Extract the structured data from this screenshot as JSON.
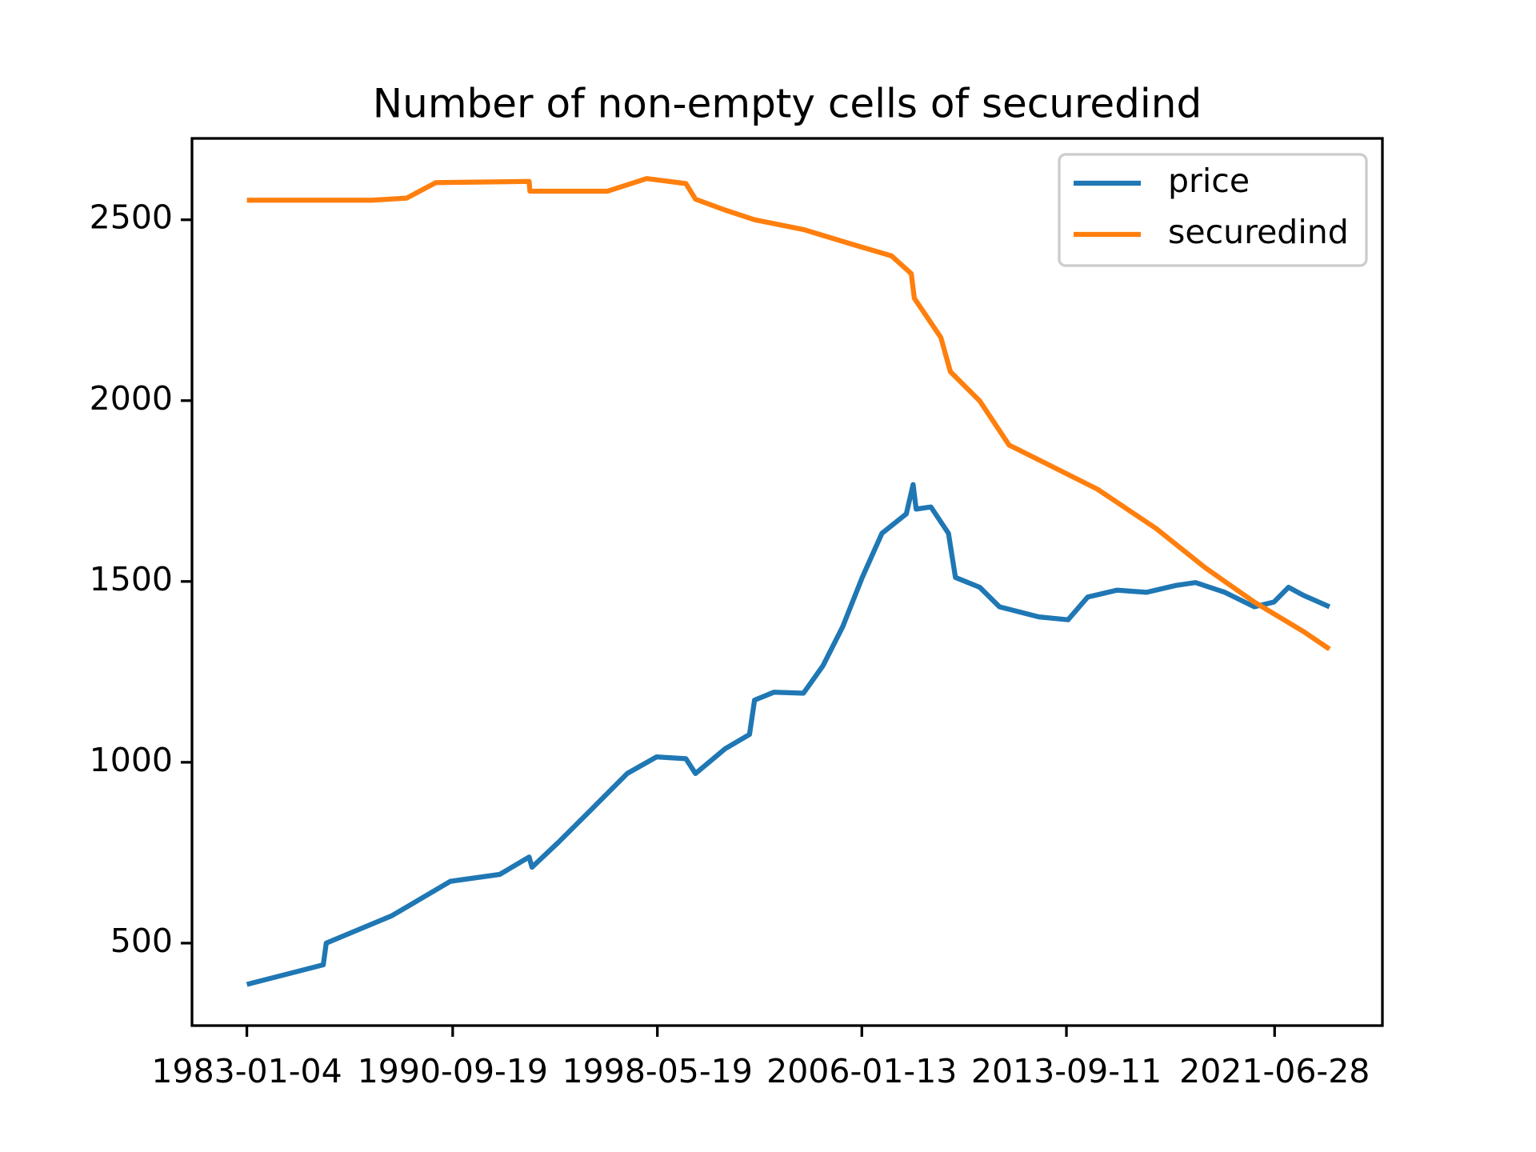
{
  "chart_data": {
    "type": "line",
    "title": "Number of non-empty cells of securedind",
    "xlim": [
      "1980-12-15",
      "2025-07-11"
    ],
    "xticks": [
      "1983-01-04",
      "1990-09-19",
      "1998-05-19",
      "2006-01-13",
      "2013-09-11",
      "2021-06-28"
    ],
    "ylim": [
      272,
      2725
    ],
    "yticks": [
      500,
      1000,
      1500,
      2000,
      2500
    ],
    "legend": "upper right",
    "series": [
      {
        "name": "price",
        "color": "#1f77b4",
        "x": [
          "1983-01-04",
          "1985-11-14",
          "1985-12-25",
          "1988-06-10",
          "1990-08-20",
          "1992-06-24",
          "1993-07-30",
          "1993-09-08",
          "1994-09-05",
          "1995-10-12",
          "1997-04-01",
          "1998-05-08",
          "1999-06-14",
          "1999-10-23",
          "2000-11-28",
          "2001-10-30",
          "2002-01-07",
          "2002-10-01",
          "2003-11-07",
          "2004-07-30",
          "2005-04-27",
          "2006-01-19",
          "2006-10-15",
          "2007-09-13",
          "2007-12-16",
          "2008-01-26",
          "2008-08-14",
          "2009-04-12",
          "2009-07-16",
          "2010-06-14",
          "2011-03-10",
          "2012-08-29",
          "2013-10-04",
          "2014-06-29",
          "2015-08-04",
          "2016-09-08",
          "2017-10-16",
          "2018-07-12",
          "2019-08-18",
          "2020-09-23",
          "2021-06-18",
          "2022-01-05",
          "2022-07-24",
          "2023-07-19"
        ],
        "values": [
          386,
          440,
          500,
          576,
          671,
          690,
          738,
          710,
          779,
          860,
          969,
          1015,
          1010,
          969,
          1037,
          1077,
          1172,
          1194,
          1191,
          1267,
          1375,
          1511,
          1633,
          1687,
          1768,
          1700,
          1706,
          1633,
          1511,
          1484,
          1430,
          1402,
          1394,
          1457,
          1476,
          1470,
          1489,
          1497,
          1470,
          1430,
          1443,
          1484,
          1462,
          1430
        ]
      },
      {
        "name": "securedind",
        "color": "#ff7f0e",
        "x": [
          "1983-01-04",
          "1987-09-16",
          "1988-12-28",
          "1990-02-01",
          "1993-07-30",
          "1993-08-10",
          "1996-07-05",
          "1997-12-24",
          "1999-06-14",
          "1999-10-23",
          "2000-11-28",
          "2002-01-07",
          "2003-11-07",
          "2005-09-09",
          "2007-02-24",
          "2007-11-20",
          "2008-01-01",
          "2008-12-28",
          "2009-05-08",
          "2010-06-14",
          "2011-07-20",
          "2013-01-08",
          "2014-11-09",
          "2017-01-22",
          "2018-11-21",
          "2020-09-23",
          "2022-07-24",
          "2023-07-19"
        ],
        "values": [
          2554,
          2554,
          2560,
          2603,
          2606,
          2579,
          2579,
          2614,
          2600,
          2557,
          2527,
          2500,
          2473,
          2432,
          2400,
          2351,
          2283,
          2175,
          2080,
          1999,
          1877,
          1823,
          1755,
          1646,
          1538,
          1443,
          1362,
          1313
        ]
      }
    ]
  }
}
